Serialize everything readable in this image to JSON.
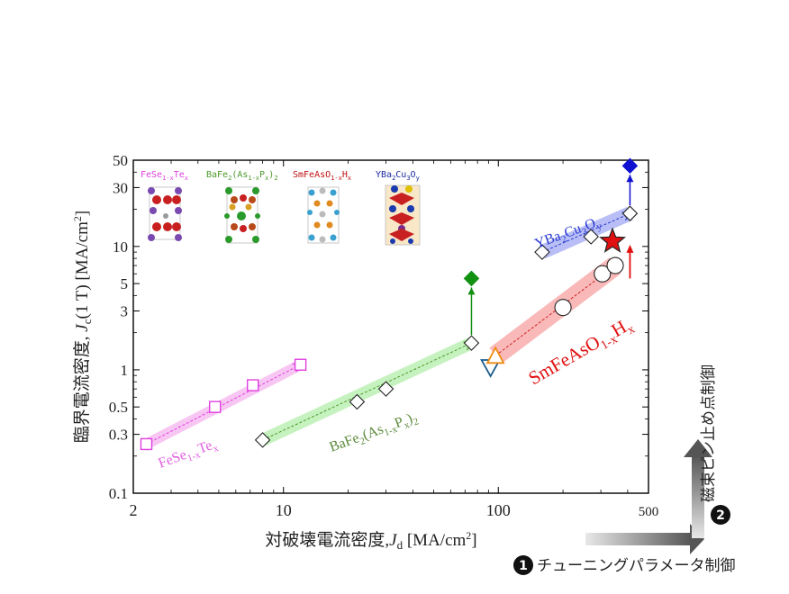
{
  "chart_data": {
    "type": "scatter",
    "x_scale": "log",
    "y_scale": "log",
    "xlim": [
      2,
      500
    ],
    "ylim": [
      0.1,
      50
    ],
    "x_ticks": [
      2,
      10,
      100,
      500
    ],
    "x_tick_labels": [
      "2",
      "10",
      "100",
      "500"
    ],
    "y_ticks": [
      0.1,
      0.3,
      0.5,
      1,
      3,
      5,
      10,
      30,
      50
    ],
    "y_tick_labels": [
      "0.1",
      "0.3",
      "0.5",
      "1",
      "3",
      "5",
      "10",
      "30",
      "50"
    ],
    "xlabel": "対破壊電流密度,J_d [MA/cm^2]",
    "ylabel": "臨界電流密度, J_c(1 T) [MA/cm^2]",
    "legend_placement": "top-left",
    "series": [
      {
        "name": "FeSe1-xTex",
        "label_parts": [
          "FeSe",
          "1-x",
          "Te",
          "x"
        ],
        "color": "#e040e0",
        "marker": "square-open",
        "x": [
          2.3,
          4.8,
          7.2,
          12
        ],
        "y": [
          0.25,
          0.5,
          0.75,
          1.1
        ]
      },
      {
        "name": "BaFe2(As1-xPx)2",
        "label_parts": [
          "BaFe",
          "2",
          "(As",
          "1-x",
          "P",
          "x",
          ")",
          "2"
        ],
        "color": "#4a9a2a",
        "marker": "diamond-open",
        "x": [
          8,
          22,
          30,
          75
        ],
        "y": [
          0.27,
          0.55,
          0.7,
          1.65
        ],
        "filled_point": {
          "x": 75,
          "y": 5.5,
          "color": "#129012"
        }
      },
      {
        "name": "SmFeAsO1-xHx",
        "label_parts": [
          "SmFeAsO",
          "1-x",
          "H",
          "x"
        ],
        "color": "#d02020",
        "marker": "circle-open",
        "x": [
          200,
          305,
          350
        ],
        "y": [
          3.2,
          6,
          7
        ],
        "extra_points": [
          {
            "marker": "triangle-down-open",
            "x": 92,
            "y": 1.05,
            "color": "#1a5a8a"
          },
          {
            "marker": "triangle-up-open",
            "x": 97,
            "y": 1.3,
            "color": "#f08a10"
          }
        ],
        "star_point": {
          "x": 340,
          "y": 11,
          "color": "#e01010"
        }
      },
      {
        "name": "YBa2Cu3Oy",
        "label_parts": [
          "YBa",
          "2",
          "Cu",
          "3",
          "O",
          "y"
        ],
        "color": "#2a3ad0",
        "marker": "diamond-open",
        "x": [
          160,
          270,
          410
        ],
        "y": [
          9,
          12,
          18.5
        ],
        "filled_point": {
          "x": 410,
          "y": 45,
          "color": "#1010d0"
        }
      }
    ]
  },
  "side_labels": {
    "vertical": "磁束ピン止め点制御",
    "vertical_number": "2",
    "horizontal": "チューニングパラメータ制御",
    "horizontal_number": "1"
  },
  "icon_names": [
    "FeSe-crystal-icon",
    "BaFe2As2-crystal-icon",
    "SmFeAsO-crystal-icon",
    "YBCO-crystal-icon"
  ]
}
